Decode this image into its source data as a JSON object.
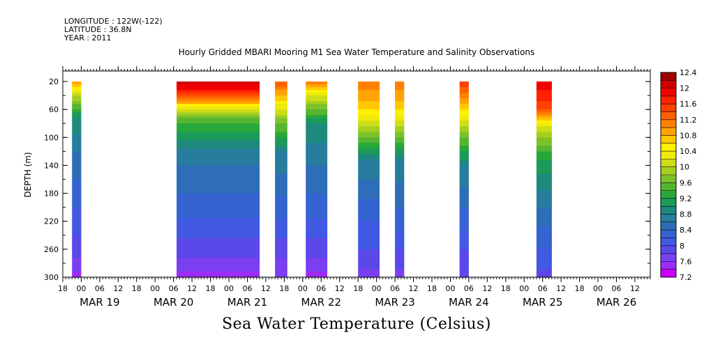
{
  "meta": {
    "longitude": "LONGITUDE : 122W(-122)",
    "latitude": "LATITUDE : 36.8N",
    "year": "YEAR : 2011"
  },
  "chart_data": {
    "type": "heatmap",
    "title": "Hourly Gridded MBARI Mooring M1 Sea Water Temperature and Salinity Observations",
    "xlabel": "Sea Water Temperature (Celsius)",
    "ylabel": "DEPTH (m)",
    "y_ticks": [
      20,
      60,
      100,
      140,
      180,
      220,
      260,
      300
    ],
    "ylim": [
      300,
      5
    ],
    "x_hour_ticks": [
      "18",
      "00",
      "06",
      "12",
      "18",
      "00",
      "06",
      "12",
      "18",
      "00",
      "06",
      "12",
      "18",
      "00",
      "06",
      "12",
      "18",
      "00",
      "06",
      "12",
      "18",
      "00",
      "06",
      "12",
      "18",
      "00",
      "06",
      "12",
      "18",
      "00",
      "06",
      "12"
    ],
    "x_date_labels": [
      {
        "label": "MAR 19",
        "hour": 6
      },
      {
        "label": "MAR 20",
        "hour": 30
      },
      {
        "label": "MAR 21",
        "hour": 54
      },
      {
        "label": "MAR 22",
        "hour": 78
      },
      {
        "label": "MAR 23",
        "hour": 102
      },
      {
        "label": "MAR 24",
        "hour": 126
      },
      {
        "label": "MAR 25",
        "hour": 150
      },
      {
        "label": "MAR 26",
        "hour": 174
      }
    ],
    "x_range_hours": [
      -6,
      185
    ],
    "colorbar": {
      "levels": [
        7.2,
        7.4,
        7.6,
        7.8,
        8.0,
        8.2,
        8.4,
        8.6,
        8.8,
        9.0,
        9.2,
        9.4,
        9.6,
        9.8,
        10.0,
        10.2,
        10.4,
        10.6,
        10.8,
        11.0,
        11.2,
        11.4,
        11.6,
        11.8,
        12.0,
        12.2,
        12.4
      ],
      "labels": [
        "7.2",
        "7.6",
        "8",
        "8.4",
        "8.8",
        "9.2",
        "9.6",
        "10",
        "10.4",
        "10.8",
        "11.2",
        "11.6",
        "12",
        "12.4"
      ]
    },
    "segments": [
      {
        "start": -3,
        "end": 0,
        "profile": [
          [
            20,
            11.0
          ],
          [
            40,
            10.0
          ],
          [
            70,
            9.0
          ],
          [
            120,
            8.6
          ],
          [
            200,
            8.2
          ],
          [
            260,
            7.9
          ],
          [
            300,
            7.5
          ]
        ]
      },
      {
        "start": 31,
        "end": 58,
        "profile": [
          [
            20,
            12.2
          ],
          [
            40,
            11.4
          ],
          [
            70,
            9.6
          ],
          [
            120,
            8.7
          ],
          [
            200,
            8.3
          ],
          [
            260,
            7.9
          ],
          [
            300,
            7.5
          ]
        ]
      },
      {
        "start": 63,
        "end": 67,
        "profile": [
          [
            20,
            11.4
          ],
          [
            40,
            10.8
          ],
          [
            80,
            9.6
          ],
          [
            120,
            8.8
          ],
          [
            200,
            8.3
          ],
          [
            260,
            7.9
          ],
          [
            300,
            7.6
          ]
        ]
      },
      {
        "start": 73,
        "end": 80,
        "profile": [
          [
            20,
            11.2
          ],
          [
            40,
            10.2
          ],
          [
            80,
            9.0
          ],
          [
            120,
            8.7
          ],
          [
            200,
            8.3
          ],
          [
            260,
            7.9
          ],
          [
            300,
            7.5
          ]
        ]
      },
      {
        "start": 90,
        "end": 97,
        "profile": [
          [
            20,
            11.2
          ],
          [
            60,
            10.6
          ],
          [
            90,
            9.8
          ],
          [
            130,
            8.8
          ],
          [
            200,
            8.3
          ],
          [
            260,
            8.0
          ],
          [
            300,
            7.7
          ]
        ]
      },
      {
        "start": 102,
        "end": 105,
        "profile": [
          [
            20,
            11.2
          ],
          [
            60,
            10.6
          ],
          [
            90,
            9.8
          ],
          [
            130,
            8.8
          ],
          [
            200,
            8.4
          ],
          [
            260,
            8.0
          ],
          [
            300,
            7.7
          ]
        ]
      },
      {
        "start": 123,
        "end": 126,
        "profile": [
          [
            20,
            11.6
          ],
          [
            60,
            10.6
          ],
          [
            100,
            9.6
          ],
          [
            140,
            8.8
          ],
          [
            200,
            8.4
          ],
          [
            260,
            8.0
          ],
          [
            300,
            7.8
          ]
        ]
      },
      {
        "start": 148,
        "end": 153,
        "profile": [
          [
            20,
            12.0
          ],
          [
            60,
            11.4
          ],
          [
            90,
            10.0
          ],
          [
            130,
            9.2
          ],
          [
            200,
            8.6
          ],
          [
            260,
            8.2
          ],
          [
            300,
            7.9
          ]
        ]
      }
    ]
  }
}
